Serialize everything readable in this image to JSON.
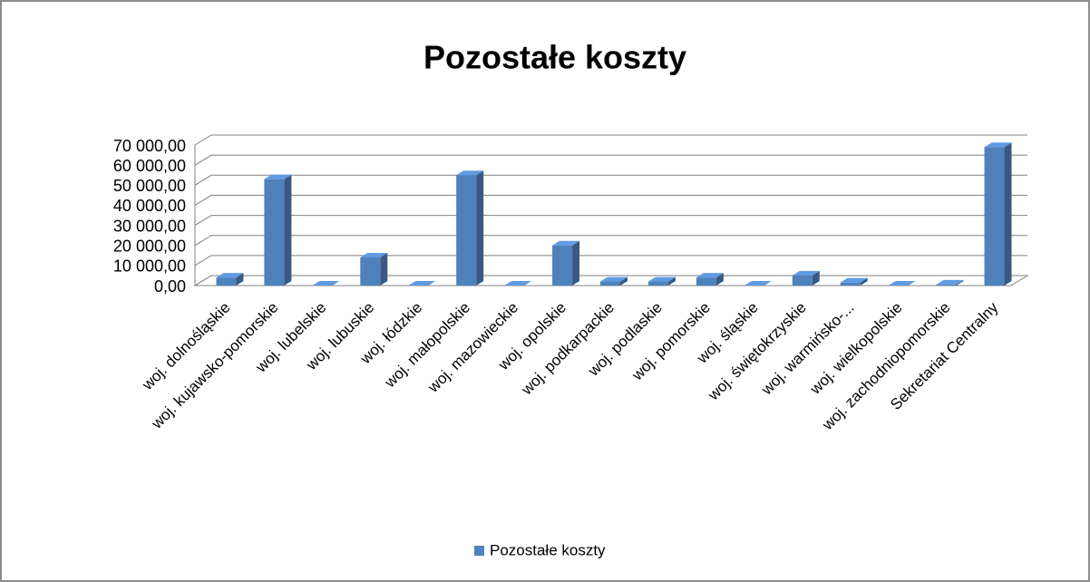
{
  "chart_data": {
    "type": "bar3d",
    "title": "Pozostałe koszty",
    "categories": [
      "woj. dolnośląskie",
      "woj. kujawsko-pomorskie",
      "woj. lubelskie",
      "woj. lubuskie",
      "woj. łódzkie",
      "woj. małopolskie",
      "woj. mazowieckie",
      "woj. opolskie",
      "woj. podkarpackie",
      "woj. podlaskie",
      "woj. pomorskie",
      "woj. śląskie",
      "woj. świętokrzyskie",
      "woj. warmińsko-...",
      "woj. wielkopolskie",
      "woj. zachodniopomorskie",
      "Sekretariat Centralny"
    ],
    "series": [
      {
        "name": "Pozostałe koszty",
        "color": "#4f81bd",
        "values": [
          4000,
          53000,
          0,
          14000,
          0,
          55000,
          0,
          20000,
          2000,
          2000,
          4000,
          0,
          5000,
          1500,
          0,
          500,
          69000
        ]
      }
    ],
    "ylim": [
      0,
      70000
    ],
    "yticks": [
      {
        "value": 0,
        "label": "0,00"
      },
      {
        "value": 10000,
        "label": "10 000,00"
      },
      {
        "value": 20000,
        "label": "20 000,00"
      },
      {
        "value": 30000,
        "label": "30 000,00"
      },
      {
        "value": 40000,
        "label": "40 000,00"
      },
      {
        "value": 50000,
        "label": "50 000,00"
      },
      {
        "value": 60000,
        "label": "60 000,00"
      },
      {
        "value": 70000,
        "label": "70 000,00"
      }
    ],
    "grid": true,
    "legend": "bottom"
  }
}
